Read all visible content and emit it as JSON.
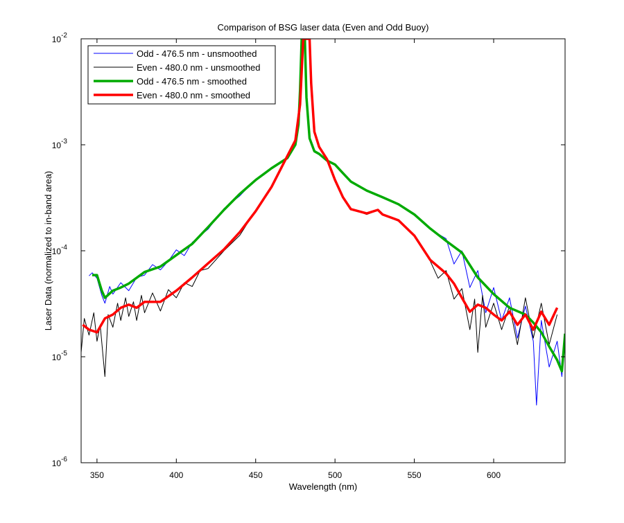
{
  "chart_data": {
    "type": "line",
    "title": "Comparison of BSG laser data (Even and Odd Buoy)",
    "xlabel": "Wavelength (nm)",
    "ylabel": "Laser Data (normalized to in-band area)",
    "xlim": [
      340,
      645
    ],
    "xticks": [
      350,
      400,
      450,
      500,
      550,
      600
    ],
    "ylim": [
      1e-06,
      0.01
    ],
    "ylog": true,
    "yticks": [
      {
        "value": 1e-06,
        "label": "10",
        "exponent": "-6"
      },
      {
        "value": 1e-05,
        "label": "10",
        "exponent": "-5"
      },
      {
        "value": 0.0001,
        "label": "10",
        "exponent": "-4"
      },
      {
        "value": 0.001,
        "label": "10",
        "exponent": "-3"
      },
      {
        "value": 0.01,
        "label": "10",
        "exponent": "-2"
      }
    ],
    "legend": "upper left",
    "series": [
      {
        "name": "Odd - 476.5 nm - unsmoothed",
        "color": "#0000ff",
        "width": 1,
        "x": [
          345,
          347,
          350,
          353,
          355,
          358,
          360,
          365,
          370,
          375,
          380,
          385,
          390,
          395,
          400,
          405,
          410,
          420,
          430,
          440,
          450,
          460,
          470,
          475,
          477,
          478,
          479,
          481,
          482,
          484,
          487,
          490,
          495,
          500,
          505,
          510,
          520,
          530,
          540,
          550,
          560,
          570,
          575,
          580,
          585,
          590,
          595,
          600,
          605,
          610,
          615,
          620,
          625,
          627,
          630,
          635,
          640,
          643,
          645
        ],
        "values": [
          5.8e-05,
          6.2e-05,
          5.5e-05,
          3.8e-05,
          3.2e-05,
          4.6e-05,
          3.9e-05,
          5e-05,
          4.2e-05,
          5.6e-05,
          5.9e-05,
          7.4e-05,
          6.6e-05,
          8e-05,
          0.000102,
          9e-05,
          0.00012,
          0.00016,
          0.00025,
          0.00033,
          0.00047,
          0.0006,
          0.00074,
          0.001,
          0.0016,
          0.0034,
          0.01,
          0.01,
          0.0028,
          0.0012,
          0.00086,
          0.00083,
          0.0007,
          0.00066,
          0.00053,
          0.00045,
          0.00037,
          0.00032,
          0.00027,
          0.00022,
          0.00016,
          0.00013,
          7.5e-05,
          0.0001,
          4.5e-05,
          6.5e-05,
          2.6e-05,
          4.5e-05,
          2.2e-05,
          3.6e-05,
          1.5e-05,
          3e-05,
          1.4e-05,
          3.5e-06,
          2.2e-05,
          8e-06,
          1.4e-05,
          6.5e-06,
          1.6e-05
        ]
      },
      {
        "name": "Even - 480.0 nm - unsmoothed",
        "color": "#000000",
        "width": 1,
        "x": [
          340,
          342,
          345,
          348,
          350,
          352,
          355,
          357,
          360,
          363,
          365,
          368,
          370,
          373,
          375,
          378,
          380,
          385,
          390,
          395,
          400,
          405,
          410,
          415,
          420,
          430,
          440,
          450,
          460,
          470,
          475,
          478,
          480,
          484,
          485,
          487,
          490,
          495,
          500,
          505,
          510,
          520,
          527,
          530,
          540,
          550,
          560,
          565,
          570,
          575,
          580,
          585,
          588,
          590,
          593,
          595,
          600,
          605,
          610,
          615,
          620,
          625,
          630,
          635,
          640
        ],
        "values": [
          1.1e-05,
          2.3e-05,
          1.6e-05,
          2.6e-05,
          1.4e-05,
          2e-05,
          6.5e-06,
          2.5e-05,
          1.9e-05,
          3.2e-05,
          2.2e-05,
          3.6e-05,
          2.4e-05,
          3.3e-05,
          2.2e-05,
          3.8e-05,
          2.6e-05,
          4e-05,
          2.7e-05,
          4.3e-05,
          3.6e-05,
          5e-05,
          4.6e-05,
          6.5e-05,
          6.8e-05,
          0.0001,
          0.00014,
          0.00024,
          0.00041,
          0.00077,
          0.0011,
          0.0025,
          0.01,
          0.01,
          0.0037,
          0.0013,
          0.00096,
          0.00073,
          0.00046,
          0.00032,
          0.00025,
          0.00022,
          0.00024,
          0.00022,
          0.00019,
          0.00014,
          8e-05,
          5.5e-05,
          6.5e-05,
          3.5e-05,
          4.4e-05,
          1.8e-05,
          3.5e-05,
          1.1e-05,
          3.8e-05,
          1.9e-05,
          3.2e-05,
          1.8e-05,
          3e-05,
          1.3e-05,
          3.6e-05,
          1.5e-05,
          3.2e-05,
          1.3e-05,
          2.5e-05
        ]
      },
      {
        "name": "Odd - 476.5 nm - smoothed",
        "color": "#00aa00",
        "width": 3.5,
        "x": [
          347,
          350,
          353,
          355,
          360,
          365,
          370,
          380,
          390,
          400,
          410,
          420,
          430,
          440,
          450,
          460,
          470,
          475,
          477,
          478,
          479,
          481,
          482,
          484,
          487,
          490,
          495,
          500,
          505,
          510,
          520,
          530,
          540,
          550,
          560,
          570,
          580,
          590,
          600,
          610,
          620,
          625,
          630,
          635,
          640,
          643,
          645
        ],
        "values": [
          5.9e-05,
          5.9e-05,
          4.2e-05,
          3.6e-05,
          4.2e-05,
          4.5e-05,
          4.9e-05,
          6.3e-05,
          7.1e-05,
          9.1e-05,
          0.000116,
          0.000167,
          0.000243,
          0.000344,
          0.000465,
          0.0006,
          0.00075,
          0.001,
          0.00155,
          0.0033,
          0.01,
          0.01,
          0.0028,
          0.00115,
          0.00087,
          0.00082,
          0.00071,
          0.00065,
          0.00054,
          0.00045,
          0.00037,
          0.00032,
          0.000275,
          0.00022,
          0.000162,
          0.000124,
          9.6e-05,
          5.6e-05,
          3.9e-05,
          2.9e-05,
          2.5e-05,
          2.1e-05,
          1.7e-05,
          1.25e-05,
          9.3e-06,
          7.3e-06,
          1.65e-05
        ]
      },
      {
        "name": "Even - 480.0 nm - smoothed",
        "color": "#ff0000",
        "width": 3.5,
        "x": [
          341,
          345,
          350,
          355,
          360,
          365,
          370,
          375,
          380,
          390,
          400,
          410,
          420,
          430,
          440,
          450,
          460,
          470,
          475,
          478,
          480,
          484,
          485,
          487,
          490,
          495,
          500,
          505,
          510,
          520,
          527,
          530,
          540,
          550,
          560,
          570,
          575,
          580,
          585,
          590,
          595,
          600,
          605,
          610,
          615,
          620,
          625,
          630,
          635,
          640
        ],
        "values": [
          2e-05,
          1.8e-05,
          1.7e-05,
          2.3e-05,
          2.5e-05,
          2.9e-05,
          3.1e-05,
          2.9e-05,
          3.3e-05,
          3.3e-05,
          4.2e-05,
          5.6e-05,
          7.6e-05,
          0.000103,
          0.00015,
          0.000236,
          0.0004,
          0.000785,
          0.0011,
          0.0024,
          0.01,
          0.01,
          0.0038,
          0.00133,
          0.000955,
          0.00073,
          0.000465,
          0.00032,
          0.000247,
          0.000225,
          0.000243,
          0.00022,
          0.000194,
          0.000139,
          8.2e-05,
          6.1e-05,
          4.9e-05,
          3.6e-05,
          2.66e-05,
          3.1e-05,
          2.9e-05,
          2.5e-05,
          2.2e-05,
          2.66e-05,
          2e-05,
          2.5e-05,
          1.8e-05,
          2.66e-05,
          2e-05,
          2.9e-05
        ]
      }
    ]
  }
}
